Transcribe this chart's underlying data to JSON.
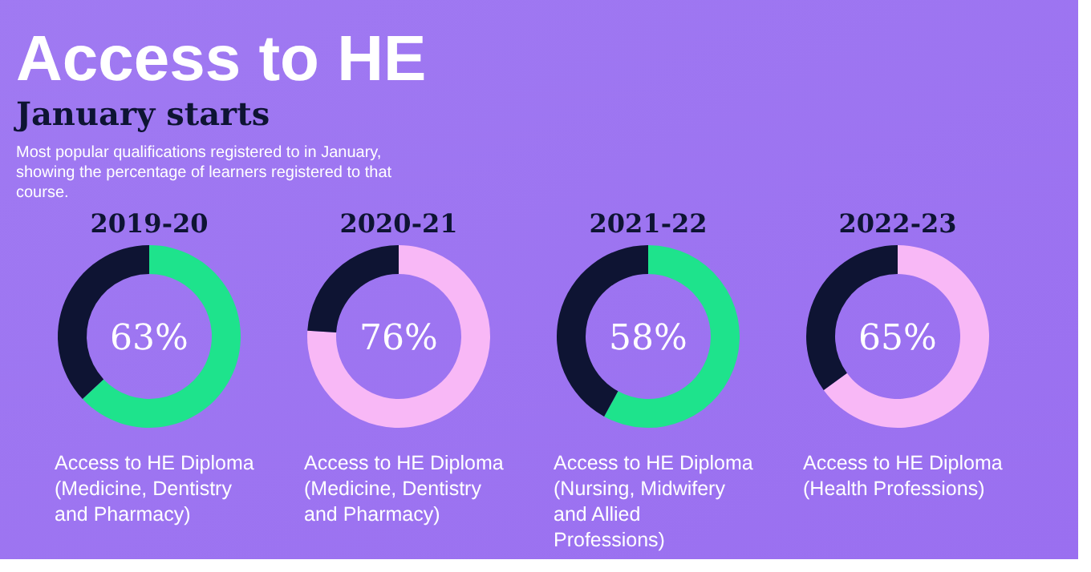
{
  "chart_data": [
    {
      "type": "other",
      "title": "Access to HE",
      "subtitle": "January starts",
      "annotations": [
        "Most popular qualifications registered to in January, showing the percentage of learners registered to that course."
      ]
    },
    {
      "type": "donut",
      "title": "2019-20",
      "categories": [
        "Access to HE Diploma (Medicine, Dentistry and Pharmacy)",
        null
      ],
      "values": [
        63,
        37
      ],
      "colors": [
        "#1ee38c",
        "#0e1433"
      ],
      "value_labels": [
        "63%",
        null
      ]
    },
    {
      "type": "donut",
      "title": "2020-21",
      "categories": [
        "Access to HE Diploma (Medicine, Dentistry and Pharmacy)",
        null
      ],
      "values": [
        76,
        24
      ],
      "colors": [
        "#f8b8f6",
        "#0e1433"
      ],
      "value_labels": [
        "76%",
        null
      ]
    },
    {
      "type": "donut",
      "title": "2021-22",
      "categories": [
        "Access to HE Diploma (Nursing, Midwifery and Allied Professions)",
        null
      ],
      "values": [
        58,
        42
      ],
      "colors": [
        "#1ee38c",
        "#0e1433"
      ],
      "value_labels": [
        "58%",
        null
      ]
    },
    {
      "type": "donut",
      "title": "2022-23",
      "categories": [
        "Access to HE Diploma (Health Professions)",
        null
      ],
      "values": [
        65,
        35
      ],
      "colors": [
        "#f8b8f6",
        "#0e1433"
      ],
      "value_labels": [
        "65%",
        null
      ]
    }
  ]
}
